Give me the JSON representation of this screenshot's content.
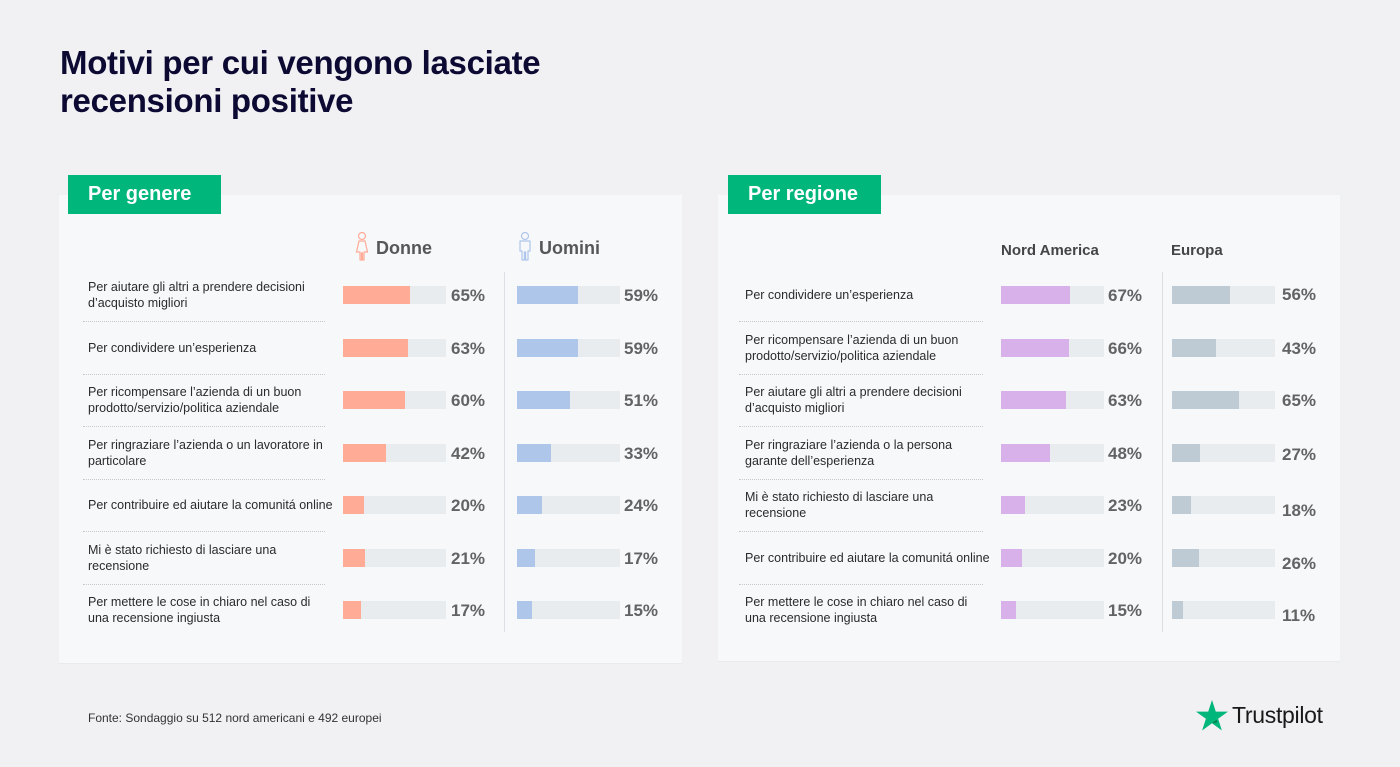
{
  "title": "Motivi per cui vengono lasciate recensioni positive",
  "footer": "Fonte: Sondaggio su 512 nord americani e 492 europei",
  "logo": {
    "text": "Trustpilot",
    "icon": "star-icon",
    "color": "#00b67a"
  },
  "chart_data": [
    {
      "type": "bar",
      "title": "Per genere",
      "orientation": "horizontal",
      "xlim": [
        0,
        100
      ],
      "unit": "%",
      "categories": [
        "Per aiutare gli altri a prendere decisioni d’acquisto migliori",
        "Per condividere un’esperienza",
        "Per ricompensare l’azienda di un buon prodotto/servizio/politica aziendale",
        "Per ringraziare l’azienda o un lavoratore in particolare",
        "Per contribuire ed aiutare la comunitá online",
        "Mi è stato richiesto di lasciare una recensione",
        "Per mettere le cose in chiaro nel caso di una recensione ingiusta"
      ],
      "series": [
        {
          "name": "Donne",
          "icon": "woman-icon",
          "color": "#ffab96",
          "values": [
            65,
            63,
            60,
            42,
            20,
            21,
            17
          ],
          "labels": [
            "65%",
            "63%",
            "60%",
            "42%",
            "20%",
            "21%",
            "17%"
          ]
        },
        {
          "name": "Uomini",
          "icon": "man-icon",
          "color": "#aec6ea",
          "values": [
            59,
            59,
            51,
            33,
            24,
            17,
            15
          ],
          "labels": [
            "59%",
            "59%",
            "51%",
            "33%",
            "24%",
            "17%",
            "15%"
          ]
        }
      ]
    },
    {
      "type": "bar",
      "title": "Per regione",
      "orientation": "horizontal",
      "xlim": [
        0,
        100
      ],
      "unit": "%",
      "categories": [
        "Per condividere un’esperienza",
        "Per ricompensare l’azienda di un buon prodotto/servizio/politica aziendale",
        "Per aiutare gli altri a prendere decisioni d’acquisto migliori",
        "Per ringraziare l’azienda o la persona garante dell’esperienza",
        "Mi è stato richiesto di lasciare una recensione",
        "Per contribuire ed aiutare la comunitá online",
        "Per mettere le cose in chiaro nel caso di una recensione ingiusta"
      ],
      "series": [
        {
          "name": "Nord America",
          "color": "#d9b1ea",
          "values": [
            67,
            66,
            63,
            48,
            23,
            20,
            15
          ],
          "labels": [
            "67%",
            "66%",
            "63%",
            "48%",
            "23%",
            "20%",
            "15%"
          ]
        },
        {
          "name": "Europa",
          "color": "#bfcbd4",
          "values": [
            56,
            43,
            65,
            27,
            18,
            26,
            11
          ],
          "labels": [
            "56%",
            "43%",
            "65%",
            "27%",
            "18%",
            "26%",
            "11%"
          ]
        }
      ]
    }
  ],
  "colors": {
    "track": "#e9ecef",
    "accent": "#00b67a",
    "title": "#0c0a33"
  }
}
